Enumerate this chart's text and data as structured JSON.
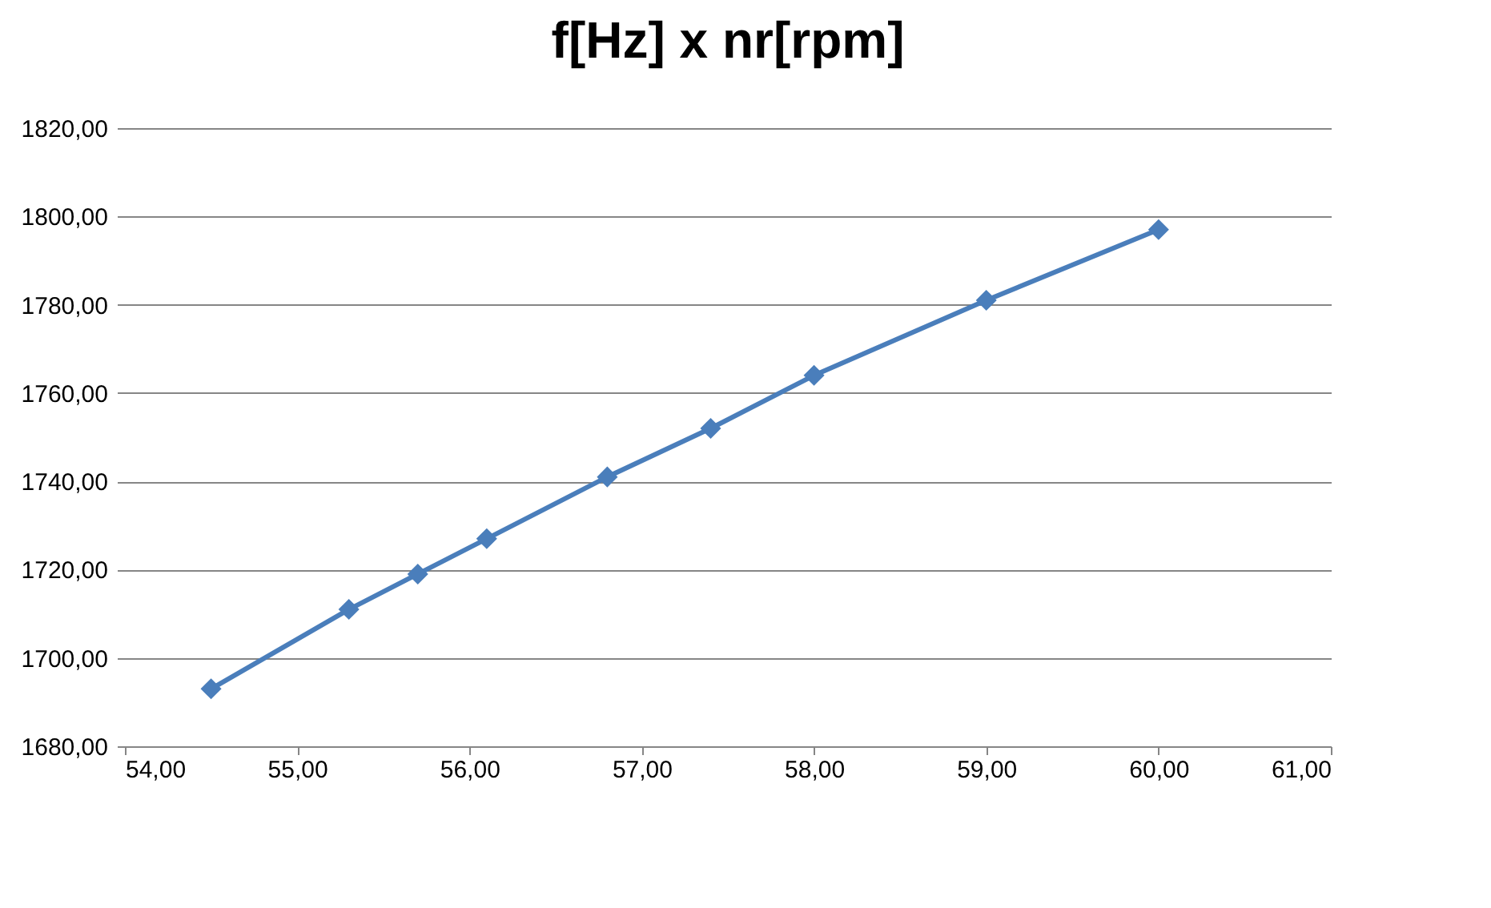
{
  "chart_data": {
    "type": "line",
    "title": "f[Hz] x nr[rpm]",
    "x": [
      54.5,
      55.3,
      55.7,
      56.1,
      56.8,
      57.4,
      58.0,
      59.0,
      60.0
    ],
    "series": [
      {
        "color": "#4a7ebb",
        "values": [
          1693,
          1711,
          1719,
          1727,
          1741,
          1752,
          1764,
          1781,
          1797
        ]
      }
    ],
    "xlim": [
      54,
      61
    ],
    "xticks": [
      {
        "value": 54,
        "label": "54,00"
      },
      {
        "value": 55,
        "label": "55,00"
      },
      {
        "value": 56,
        "label": "56,00"
      },
      {
        "value": 57,
        "label": "57,00"
      },
      {
        "value": 58,
        "label": "58,00"
      },
      {
        "value": 59,
        "label": "59,00"
      },
      {
        "value": 60,
        "label": "60,00"
      },
      {
        "value": 61,
        "label": "61,00"
      }
    ],
    "ylim": [
      1680,
      1820
    ],
    "yticks": [
      {
        "value": 1680,
        "label": "1680,00"
      },
      {
        "value": 1700,
        "label": "1700,00"
      },
      {
        "value": 1720,
        "label": "1720,00"
      },
      {
        "value": 1740,
        "label": "1740,00"
      },
      {
        "value": 1760,
        "label": "1760,00"
      },
      {
        "value": 1780,
        "label": "1780,00"
      },
      {
        "value": 1800,
        "label": "1800,00"
      },
      {
        "value": 1820,
        "label": "1820,00"
      }
    ],
    "grid": "y",
    "marker": "diamond",
    "line_style": "solid",
    "legend": false
  }
}
